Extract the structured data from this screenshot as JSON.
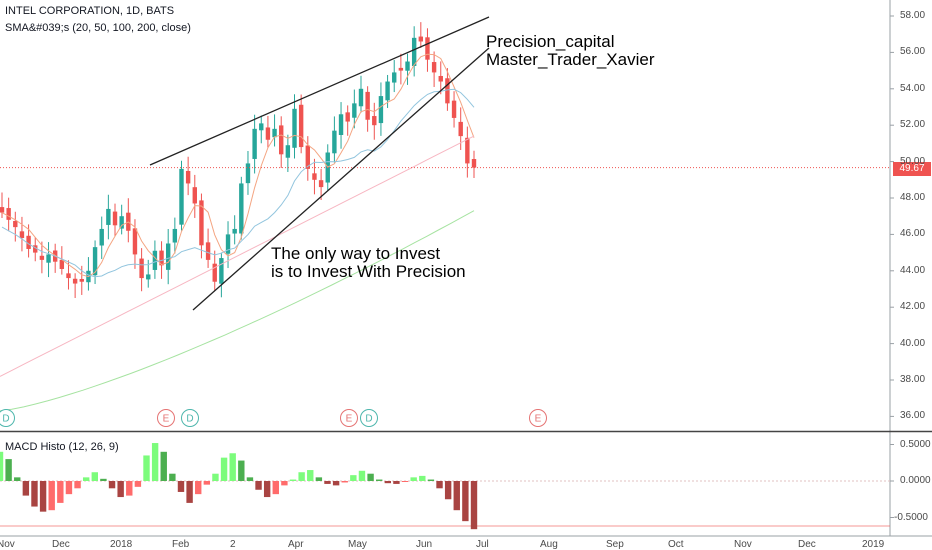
{
  "header": {
    "symbol_line": "INTEL CORPORATION, 1D, BATS",
    "indicator_line": "SMA&#039;s (20, 50, 100, 200, close)"
  },
  "macd": {
    "label": "MACD Histo (12, 26, 9)"
  },
  "annotations": {
    "line1": "Precision_capital",
    "line2": "Master_Trader_Xavier",
    "line3": "The only way to Invest",
    "line4": "is to Invest With Precision"
  },
  "last_price": "49.67",
  "colors": {
    "up": "#26a69a",
    "down": "#ef5350",
    "macd_up_strong": "#26a69a",
    "macd_up_weak": "#90ee90",
    "macd_down_strong": "#b71c1c",
    "macd_down_weak": "#ff6f6f",
    "sma20": "#f4a582",
    "sma50": "#92c5de",
    "sma100": "#f7b6c2",
    "sma200": "#a6e3a1"
  },
  "chart_data": [
    {
      "type": "candlestick",
      "title": "INTEL CORPORATION, 1D, BATS",
      "x_ticks": [
        "Nov",
        "Dec",
        "2018",
        "Feb",
        "2",
        "Apr",
        "May",
        "Jun",
        "Jul",
        "Aug",
        "Sep",
        "Oct",
        "Nov",
        "Dec",
        "2019"
      ],
      "y_ticks": [
        "58.00",
        "56.00",
        "54.00",
        "52.00",
        "50.00",
        "48.00",
        "46.00",
        "44.00",
        "42.00",
        "40.00",
        "38.00",
        "36.00"
      ],
      "ylim": [
        35.4,
        58.6
      ],
      "ohlc_close_estimates": [
        47.2,
        46.8,
        46.4,
        45.8,
        45.2,
        45.0,
        44.6,
        44.9,
        44.5,
        44.1,
        43.6,
        43.3,
        43.4,
        44.0,
        45.3,
        46.3,
        47.4,
        46.5,
        47.0,
        46.2,
        44.9,
        43.6,
        43.8,
        45.1,
        44.3,
        45.5,
        46.3,
        49.6,
        48.8,
        47.7,
        45.4,
        44.6,
        43.4,
        44.7,
        46.0,
        46.3,
        48.8,
        49.9,
        51.8,
        52.1,
        51.2,
        51.8,
        50.4,
        50.9,
        52.9,
        50.8,
        49.6,
        49.0,
        48.6,
        50.5,
        51.7,
        52.6,
        52.2,
        53.2,
        54.0,
        52.3,
        52.0,
        53.6,
        54.4,
        54.9,
        55.0,
        55.5,
        56.8,
        56.6,
        55.6,
        54.9,
        54.4,
        53.2,
        52.4,
        51.4,
        49.9,
        49.67
      ],
      "last_price": 49.67,
      "sma_periods": [
        20,
        50,
        100,
        200
      ],
      "trendlines": [
        "upper wedge line",
        "lower wedge line"
      ],
      "event_markers": [
        {
          "label": "D",
          "x": "Nov"
        },
        {
          "label": "E",
          "x": "Jan"
        },
        {
          "label": "D",
          "x": "Feb"
        },
        {
          "label": "E",
          "x": "Apr"
        },
        {
          "label": "D",
          "x": "May"
        },
        {
          "label": "E",
          "x": "Jul"
        }
      ]
    },
    {
      "type": "bar",
      "title": "MACD Histo (12, 26, 9)",
      "y_ticks": [
        "0.5000",
        "0.0000",
        "-0.5000"
      ],
      "ylim": [
        -0.72,
        0.62
      ],
      "values": [
        0.4,
        0.3,
        0.05,
        -0.2,
        -0.35,
        -0.42,
        -0.4,
        -0.3,
        -0.18,
        -0.1,
        0.05,
        0.12,
        0.03,
        -0.1,
        -0.22,
        -0.2,
        -0.08,
        0.35,
        0.52,
        0.4,
        0.1,
        -0.15,
        -0.3,
        -0.18,
        -0.05,
        0.1,
        0.32,
        0.38,
        0.28,
        0.05,
        -0.12,
        -0.22,
        -0.18,
        -0.06,
        0.02,
        0.12,
        0.15,
        0.05,
        -0.04,
        -0.06,
        -0.02,
        0.08,
        0.14,
        0.1,
        0.02,
        -0.03,
        -0.04,
        -0.01,
        0.05,
        0.07,
        0.02,
        -0.1,
        -0.25,
        -0.4,
        -0.55,
        -0.66
      ]
    }
  ]
}
